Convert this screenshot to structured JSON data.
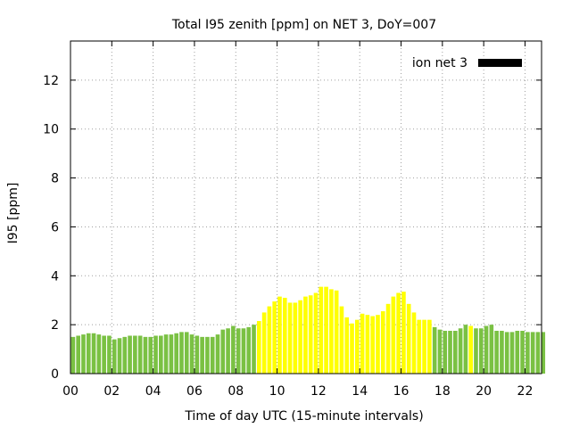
{
  "chart_data": {
    "type": "bar",
    "title": "Total I95 zenith [ppm] on NET 3, DoY=007",
    "xlabel": "Time of day UTC (15-minute intervals)",
    "ylabel": "I95 [ppm]",
    "xlim": [
      0,
      22.8
    ],
    "ylim": [
      0,
      13.6
    ],
    "xticks": [
      "00",
      "02",
      "04",
      "06",
      "08",
      "10",
      "12",
      "14",
      "16",
      "18",
      "20",
      "22"
    ],
    "yticks": [
      "0",
      "2",
      "4",
      "6",
      "8",
      "10",
      "12"
    ],
    "grid": true,
    "legend_position": "top-right",
    "series": [
      {
        "name": "ion net 3",
        "interval_hours": 0.25,
        "values": [
          1.5,
          1.55,
          1.6,
          1.65,
          1.65,
          1.6,
          1.55,
          1.55,
          1.4,
          1.45,
          1.5,
          1.55,
          1.55,
          1.55,
          1.5,
          1.5,
          1.55,
          1.55,
          1.6,
          1.6,
          1.65,
          1.7,
          1.7,
          1.6,
          1.55,
          1.5,
          1.5,
          1.5,
          1.6,
          1.8,
          1.85,
          1.95,
          1.85,
          1.85,
          1.9,
          2.0,
          2.15,
          2.5,
          2.75,
          2.95,
          3.15,
          3.1,
          2.9,
          2.9,
          3.0,
          3.15,
          3.2,
          3.3,
          3.55,
          3.55,
          3.45,
          3.4,
          2.75,
          2.3,
          2.05,
          2.2,
          2.45,
          2.4,
          2.35,
          2.4,
          2.55,
          2.85,
          3.15,
          3.3,
          3.35,
          2.85,
          2.5,
          2.2,
          2.2,
          2.2,
          1.9,
          1.8,
          1.75,
          1.75,
          1.75,
          1.85,
          2.0,
          1.95,
          1.85,
          1.85,
          1.95,
          2.0,
          1.75,
          1.75,
          1.7,
          1.7,
          1.75,
          1.75,
          1.7,
          1.7,
          1.7,
          1.7
        ],
        "colors": [
          "#7ac143",
          "#7ac143",
          "#7ac143",
          "#7ac143",
          "#7ac143",
          "#7ac143",
          "#7ac143",
          "#7ac143",
          "#7ac143",
          "#7ac143",
          "#7ac143",
          "#7ac143",
          "#7ac143",
          "#7ac143",
          "#7ac143",
          "#7ac143",
          "#7ac143",
          "#7ac143",
          "#7ac143",
          "#7ac143",
          "#7ac143",
          "#7ac143",
          "#7ac143",
          "#7ac143",
          "#7ac143",
          "#7ac143",
          "#7ac143",
          "#7ac143",
          "#7ac143",
          "#7ac143",
          "#7ac143",
          "#7ac143",
          "#7ac143",
          "#7ac143",
          "#7ac143",
          "#7ac143",
          "#ffff00",
          "#ffff00",
          "#ffff00",
          "#ffff00",
          "#ffff00",
          "#ffff00",
          "#ffff00",
          "#ffff00",
          "#ffff00",
          "#ffff00",
          "#ffff00",
          "#ffff00",
          "#ffff00",
          "#ffff00",
          "#ffff00",
          "#ffff00",
          "#ffff00",
          "#ffff00",
          "#ffff00",
          "#ffff00",
          "#ffff00",
          "#ffff00",
          "#ffff00",
          "#ffff00",
          "#ffff00",
          "#ffff00",
          "#ffff00",
          "#ffff00",
          "#ffff00",
          "#ffff00",
          "#ffff00",
          "#ffff00",
          "#ffff00",
          "#ffff00",
          "#7ac143",
          "#7ac143",
          "#7ac143",
          "#7ac143",
          "#7ac143",
          "#7ac143",
          "#7ac143",
          "#ffff00",
          "#7ac143",
          "#7ac143",
          "#7ac143",
          "#7ac143",
          "#7ac143",
          "#7ac143",
          "#7ac143",
          "#7ac143",
          "#7ac143",
          "#7ac143",
          "#7ac143",
          "#7ac143",
          "#7ac143",
          "#7ac143"
        ],
        "legend_color": "#000000"
      }
    ]
  }
}
